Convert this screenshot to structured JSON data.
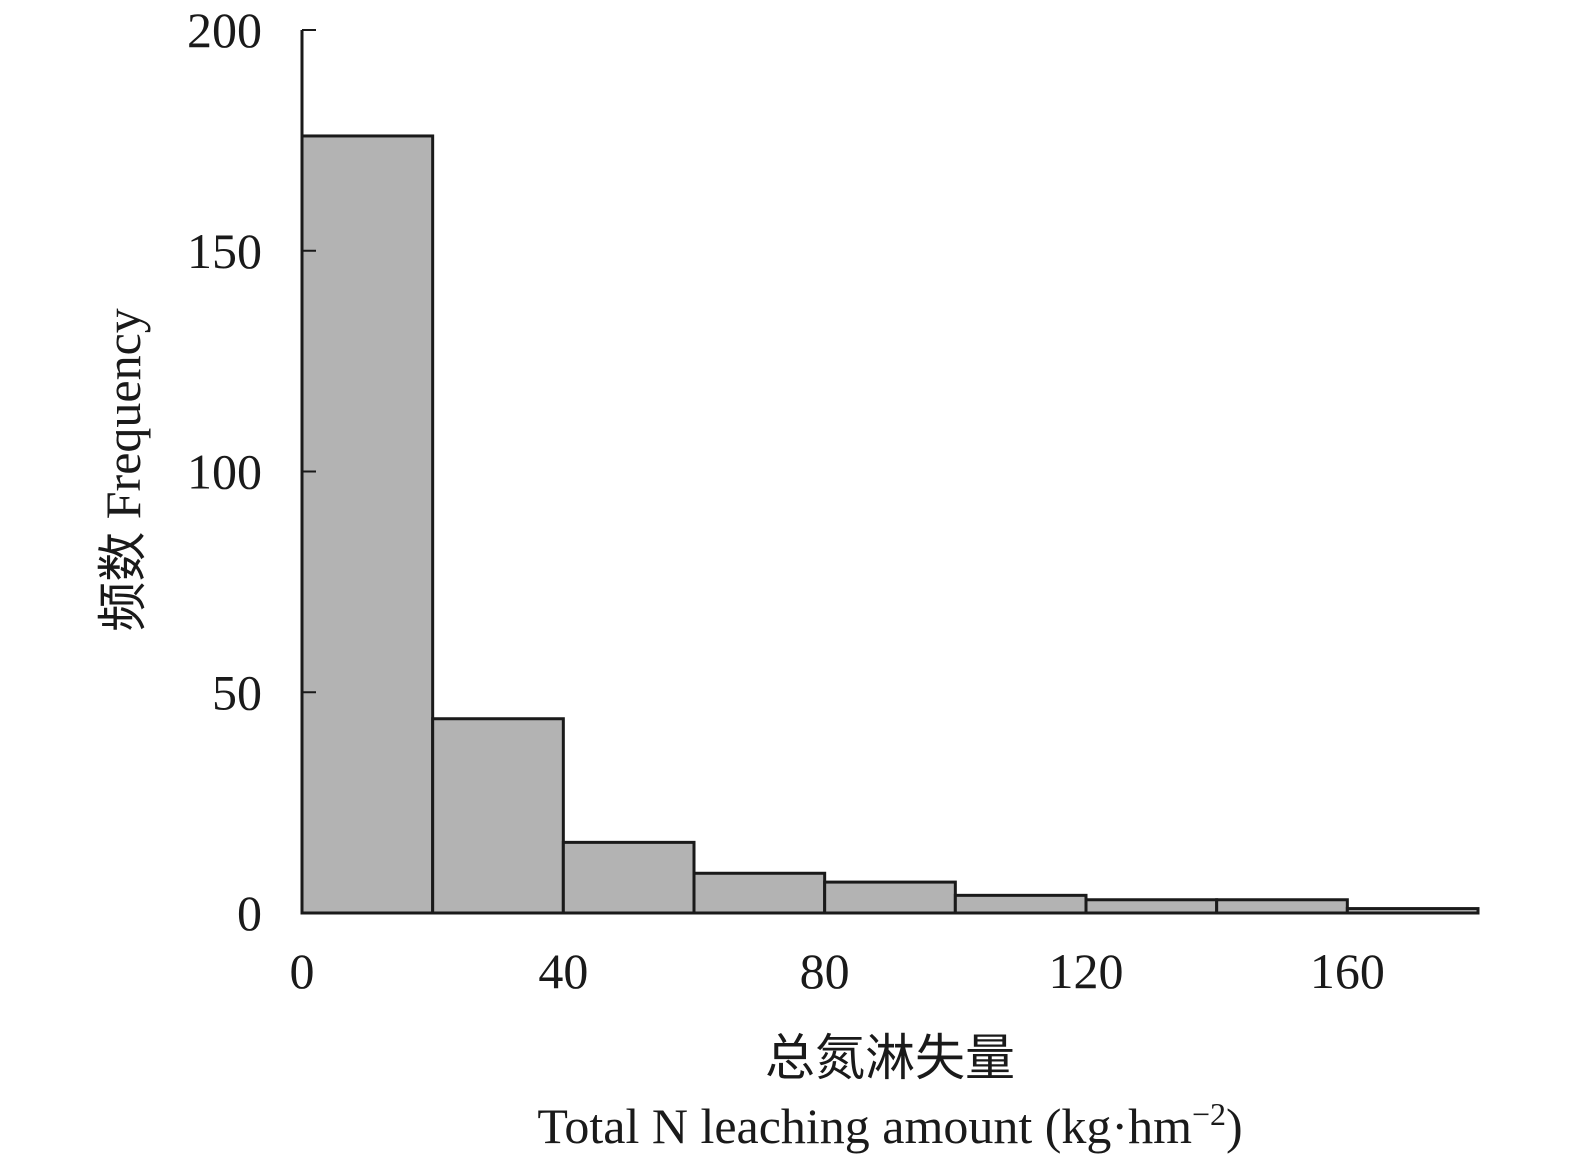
{
  "chart_data": {
    "type": "bar",
    "style": "histogram",
    "bin_edges": [
      0,
      20,
      40,
      60,
      80,
      100,
      120,
      140,
      160,
      180
    ],
    "values": [
      176,
      44,
      16,
      9,
      7,
      4,
      3,
      3,
      1
    ],
    "xlim": [
      0,
      180
    ],
    "ylim": [
      0,
      200
    ],
    "xticks": [
      0,
      40,
      80,
      120,
      160
    ],
    "yticks": [
      0,
      50,
      100,
      150,
      200
    ],
    "xlabel_cn": "总氮淋失量",
    "xlabel_en_main": "Total N leaching amount (kg·hm",
    "xlabel_en_sup": "−2",
    "xlabel_en_close": ")",
    "ylabel": "频数 Frequency",
    "grid": false,
    "legend": "none",
    "bar_color": "#b3b3b3",
    "edge_color": "#1a1a1a"
  }
}
